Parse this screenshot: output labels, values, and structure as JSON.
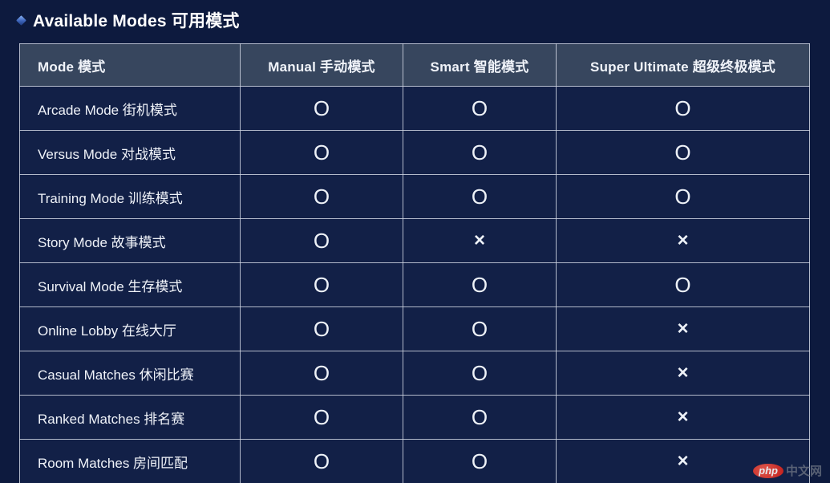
{
  "page": {
    "title": "Available Modes  可用模式"
  },
  "table": {
    "headers": [
      "Mode  模式",
      "Manual  手动模式",
      "Smart  智能模式",
      "Super Ultimate  超级终极模式"
    ],
    "symbols": {
      "available": "O",
      "unavailable": "×"
    },
    "rows": [
      {
        "mode": "Arcade Mode  街机模式",
        "manual": "O",
        "smart": "O",
        "super_ultimate": "O"
      },
      {
        "mode": "Versus Mode  对战模式",
        "manual": "O",
        "smart": "O",
        "super_ultimate": "O"
      },
      {
        "mode": "Training Mode  训练模式",
        "manual": "O",
        "smart": "O",
        "super_ultimate": "O"
      },
      {
        "mode": "Story Mode  故事模式",
        "manual": "O",
        "smart": "×",
        "super_ultimate": "×"
      },
      {
        "mode": "Survival Mode  生存模式",
        "manual": "O",
        "smart": "O",
        "super_ultimate": "O"
      },
      {
        "mode": "Online Lobby  在线大厅",
        "manual": "O",
        "smart": "O",
        "super_ultimate": "×"
      },
      {
        "mode": "Casual Matches  休闲比赛",
        "manual": "O",
        "smart": "O",
        "super_ultimate": "×"
      },
      {
        "mode": "Ranked Matches  排名赛",
        "manual": "O",
        "smart": "O",
        "super_ultimate": "×"
      },
      {
        "mode": "Room Matches  房间匹配",
        "manual": "O",
        "smart": "O",
        "super_ultimate": "×"
      }
    ]
  },
  "watermark": {
    "logo": "php",
    "text": "中文网"
  },
  "colors": {
    "page_background": "#0d1a3e",
    "cell_background": "#122047",
    "header_background": "#37465e",
    "border": "#cfd5e2",
    "text": "#f0f3f9",
    "bullet_accent": "#8ab4f8",
    "watermark_red": "#d61f18"
  }
}
